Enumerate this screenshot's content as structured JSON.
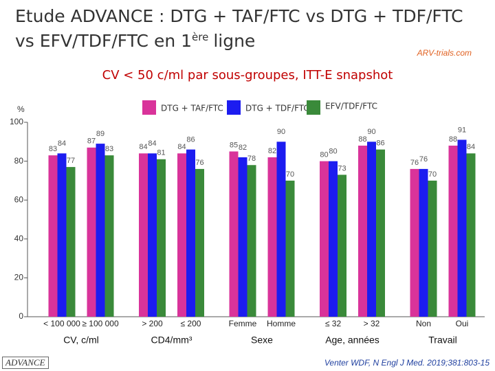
{
  "header": {
    "title_line1": "Etude ADVANCE : DTG + TAF/FTC vs DTG + TDF/FTC",
    "title_line2": "vs EFV/TDF/FTC en 1",
    "title_sup": "ère",
    "title_end": "ligne",
    "logo": "ARV-trials.com"
  },
  "chart_data": {
    "type": "bar",
    "title": "CV < 50 c/ml par sous-groupes, ITT-E snapshot",
    "y_label": "%",
    "categories": [
      "< 100 000",
      "≥ 100 000",
      "> 200",
      "≤ 200",
      "Femme",
      "Homme",
      "≤ 32",
      "> 32",
      "Non",
      "Oui"
    ],
    "group_labels": [
      "CV, c/ml",
      "CD4/mm³",
      "Sexe",
      "Age, années",
      "Travail"
    ],
    "series": [
      {
        "name": "DTG + TAF/FTC",
        "color": "#d9339a",
        "values": [
          83,
          87,
          84,
          84,
          85,
          82,
          80,
          88,
          76,
          88
        ]
      },
      {
        "name": "DTG + TDF/FTC",
        "color": "#1c1cf0",
        "values": [
          84,
          89,
          84,
          86,
          82,
          90,
          80,
          90,
          76,
          91
        ]
      },
      {
        "name": "EFV/TDF/FTC",
        "color": "#3a8a3a",
        "values": [
          77,
          83,
          81,
          76,
          78,
          70,
          73,
          86,
          70,
          84
        ]
      }
    ],
    "ylim": [
      0,
      100
    ],
    "yticks": [
      0,
      20,
      40,
      60,
      80,
      100
    ],
    "legend": "top"
  },
  "footer": {
    "badge": "ADVANCE",
    "citation": "Venter WDF, N Engl J Med. 2019;381:803-15"
  }
}
